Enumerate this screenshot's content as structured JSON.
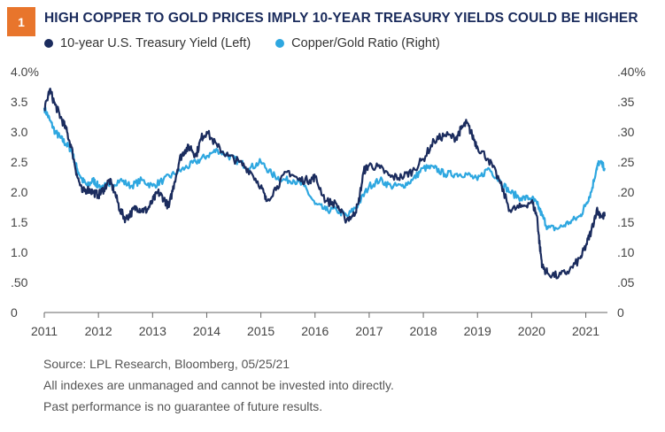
{
  "badge": "1",
  "title": "HIGH COPPER TO GOLD PRICES IMPLY 10-YEAR TREASURY YIELDS COULD BE HIGHER",
  "footnotes": [
    "Source: LPL Research, Bloomberg,  05/25/21",
    "All indexes are unmanaged and cannot be invested into directly.",
    "Past performance is no guarantee of future results."
  ],
  "colors": {
    "treasury": "#1b2c5e",
    "ratio": "#2ea7e0",
    "badge": "#e8752c",
    "title": "#1a2b5c"
  },
  "chart_data": {
    "type": "line",
    "title": "",
    "xlabel": "",
    "ylabel_left": "",
    "ylabel_right": "",
    "grid": false,
    "legend_position": "top-left",
    "x_range": [
      2011.0,
      2021.4
    ],
    "x_ticks": [
      "2011",
      "2012",
      "2013",
      "2014",
      "2015",
      "2016",
      "2017",
      "2018",
      "2019",
      "2020",
      "2021"
    ],
    "y_left": {
      "range": [
        0,
        4.0
      ],
      "ticks": [
        {
          "v": 4.0,
          "label": "4.0%"
        },
        {
          "v": 3.5,
          "label": "3.5"
        },
        {
          "v": 3.0,
          "label": "3.0"
        },
        {
          "v": 2.5,
          "label": "2.5"
        },
        {
          "v": 2.0,
          "label": "2.0"
        },
        {
          "v": 1.5,
          "label": "1.5"
        },
        {
          "v": 1.0,
          "label": "1.0"
        },
        {
          "v": 0.5,
          "label": ".50"
        },
        {
          "v": 0,
          "label": "0"
        }
      ]
    },
    "y_right": {
      "range": [
        0,
        0.4
      ],
      "ticks": [
        {
          "v": 0.4,
          "label": ".40%"
        },
        {
          "v": 0.35,
          "label": ".35"
        },
        {
          "v": 0.3,
          "label": ".30"
        },
        {
          "v": 0.25,
          "label": ".25"
        },
        {
          "v": 0.2,
          "label": ".20"
        },
        {
          "v": 0.15,
          "label": ".15"
        },
        {
          "v": 0.1,
          "label": ".10"
        },
        {
          "v": 0.05,
          "label": ".05"
        },
        {
          "v": 0,
          "label": "0"
        }
      ]
    },
    "series": [
      {
        "name": "10-year U.S. Treasury Yield (Left)",
        "axis": "left",
        "x": [
          2011.0,
          2011.1,
          2011.2,
          2011.3,
          2011.4,
          2011.5,
          2011.6,
          2011.7,
          2011.8,
          2011.9,
          2012.0,
          2012.1,
          2012.2,
          2012.3,
          2012.4,
          2012.5,
          2012.6,
          2012.7,
          2012.8,
          2012.9,
          2013.0,
          2013.1,
          2013.2,
          2013.3,
          2013.4,
          2013.5,
          2013.6,
          2013.7,
          2013.8,
          2013.9,
          2014.0,
          2014.2,
          2014.4,
          2014.6,
          2014.8,
          2015.0,
          2015.1,
          2015.3,
          2015.5,
          2015.7,
          2015.9,
          2016.0,
          2016.2,
          2016.4,
          2016.55,
          2016.7,
          2016.8,
          2016.9,
          2017.0,
          2017.2,
          2017.4,
          2017.6,
          2017.8,
          2018.0,
          2018.2,
          2018.4,
          2018.6,
          2018.7,
          2018.8,
          2018.9,
          2019.0,
          2019.2,
          2019.4,
          2019.6,
          2019.8,
          2020.0,
          2020.1,
          2020.15,
          2020.2,
          2020.3,
          2020.5,
          2020.7,
          2020.9,
          2021.0,
          2021.1,
          2021.2,
          2021.3,
          2021.35
        ],
        "values": [
          3.35,
          3.7,
          3.45,
          3.25,
          3.05,
          2.75,
          2.3,
          2.0,
          2.05,
          2.0,
          1.95,
          2.05,
          2.2,
          2.0,
          1.7,
          1.55,
          1.65,
          1.75,
          1.7,
          1.7,
          1.85,
          2.0,
          1.9,
          1.75,
          2.15,
          2.55,
          2.7,
          2.75,
          2.6,
          2.9,
          3.0,
          2.75,
          2.6,
          2.5,
          2.35,
          2.1,
          1.85,
          2.1,
          2.35,
          2.2,
          2.2,
          2.25,
          1.85,
          1.8,
          1.55,
          1.6,
          1.8,
          2.35,
          2.45,
          2.4,
          2.25,
          2.25,
          2.35,
          2.55,
          2.85,
          2.95,
          2.9,
          3.05,
          3.15,
          2.95,
          2.75,
          2.55,
          2.2,
          1.7,
          1.75,
          1.85,
          1.6,
          1.1,
          0.75,
          0.65,
          0.6,
          0.7,
          0.9,
          1.1,
          1.35,
          1.7,
          1.6,
          1.6
        ]
      },
      {
        "name": "Copper/Gold Ratio (Right)",
        "axis": "right",
        "x": [
          2011.0,
          2011.1,
          2011.2,
          2011.3,
          2011.4,
          2011.5,
          2011.6,
          2011.7,
          2011.8,
          2011.9,
          2012.0,
          2012.2,
          2012.4,
          2012.6,
          2012.8,
          2013.0,
          2013.2,
          2013.4,
          2013.6,
          2013.8,
          2014.0,
          2014.2,
          2014.4,
          2014.6,
          2014.8,
          2015.0,
          2015.2,
          2015.4,
          2015.6,
          2015.8,
          2016.0,
          2016.2,
          2016.4,
          2016.6,
          2016.8,
          2017.0,
          2017.2,
          2017.4,
          2017.6,
          2017.8,
          2018.0,
          2018.2,
          2018.4,
          2018.6,
          2018.8,
          2019.0,
          2019.2,
          2019.4,
          2019.6,
          2019.8,
          2020.0,
          2020.1,
          2020.2,
          2020.3,
          2020.5,
          2020.7,
          2020.9,
          2021.0,
          2021.1,
          2021.2,
          2021.25,
          2021.35
        ],
        "values": [
          0.34,
          0.32,
          0.3,
          0.29,
          0.28,
          0.27,
          0.24,
          0.22,
          0.21,
          0.22,
          0.21,
          0.21,
          0.22,
          0.21,
          0.22,
          0.21,
          0.22,
          0.23,
          0.24,
          0.25,
          0.26,
          0.27,
          0.26,
          0.25,
          0.24,
          0.25,
          0.23,
          0.22,
          0.22,
          0.21,
          0.18,
          0.17,
          0.17,
          0.16,
          0.18,
          0.21,
          0.22,
          0.21,
          0.21,
          0.22,
          0.24,
          0.24,
          0.23,
          0.23,
          0.23,
          0.22,
          0.24,
          0.22,
          0.2,
          0.19,
          0.19,
          0.18,
          0.16,
          0.14,
          0.14,
          0.15,
          0.16,
          0.18,
          0.2,
          0.24,
          0.25,
          0.24
        ]
      }
    ]
  }
}
